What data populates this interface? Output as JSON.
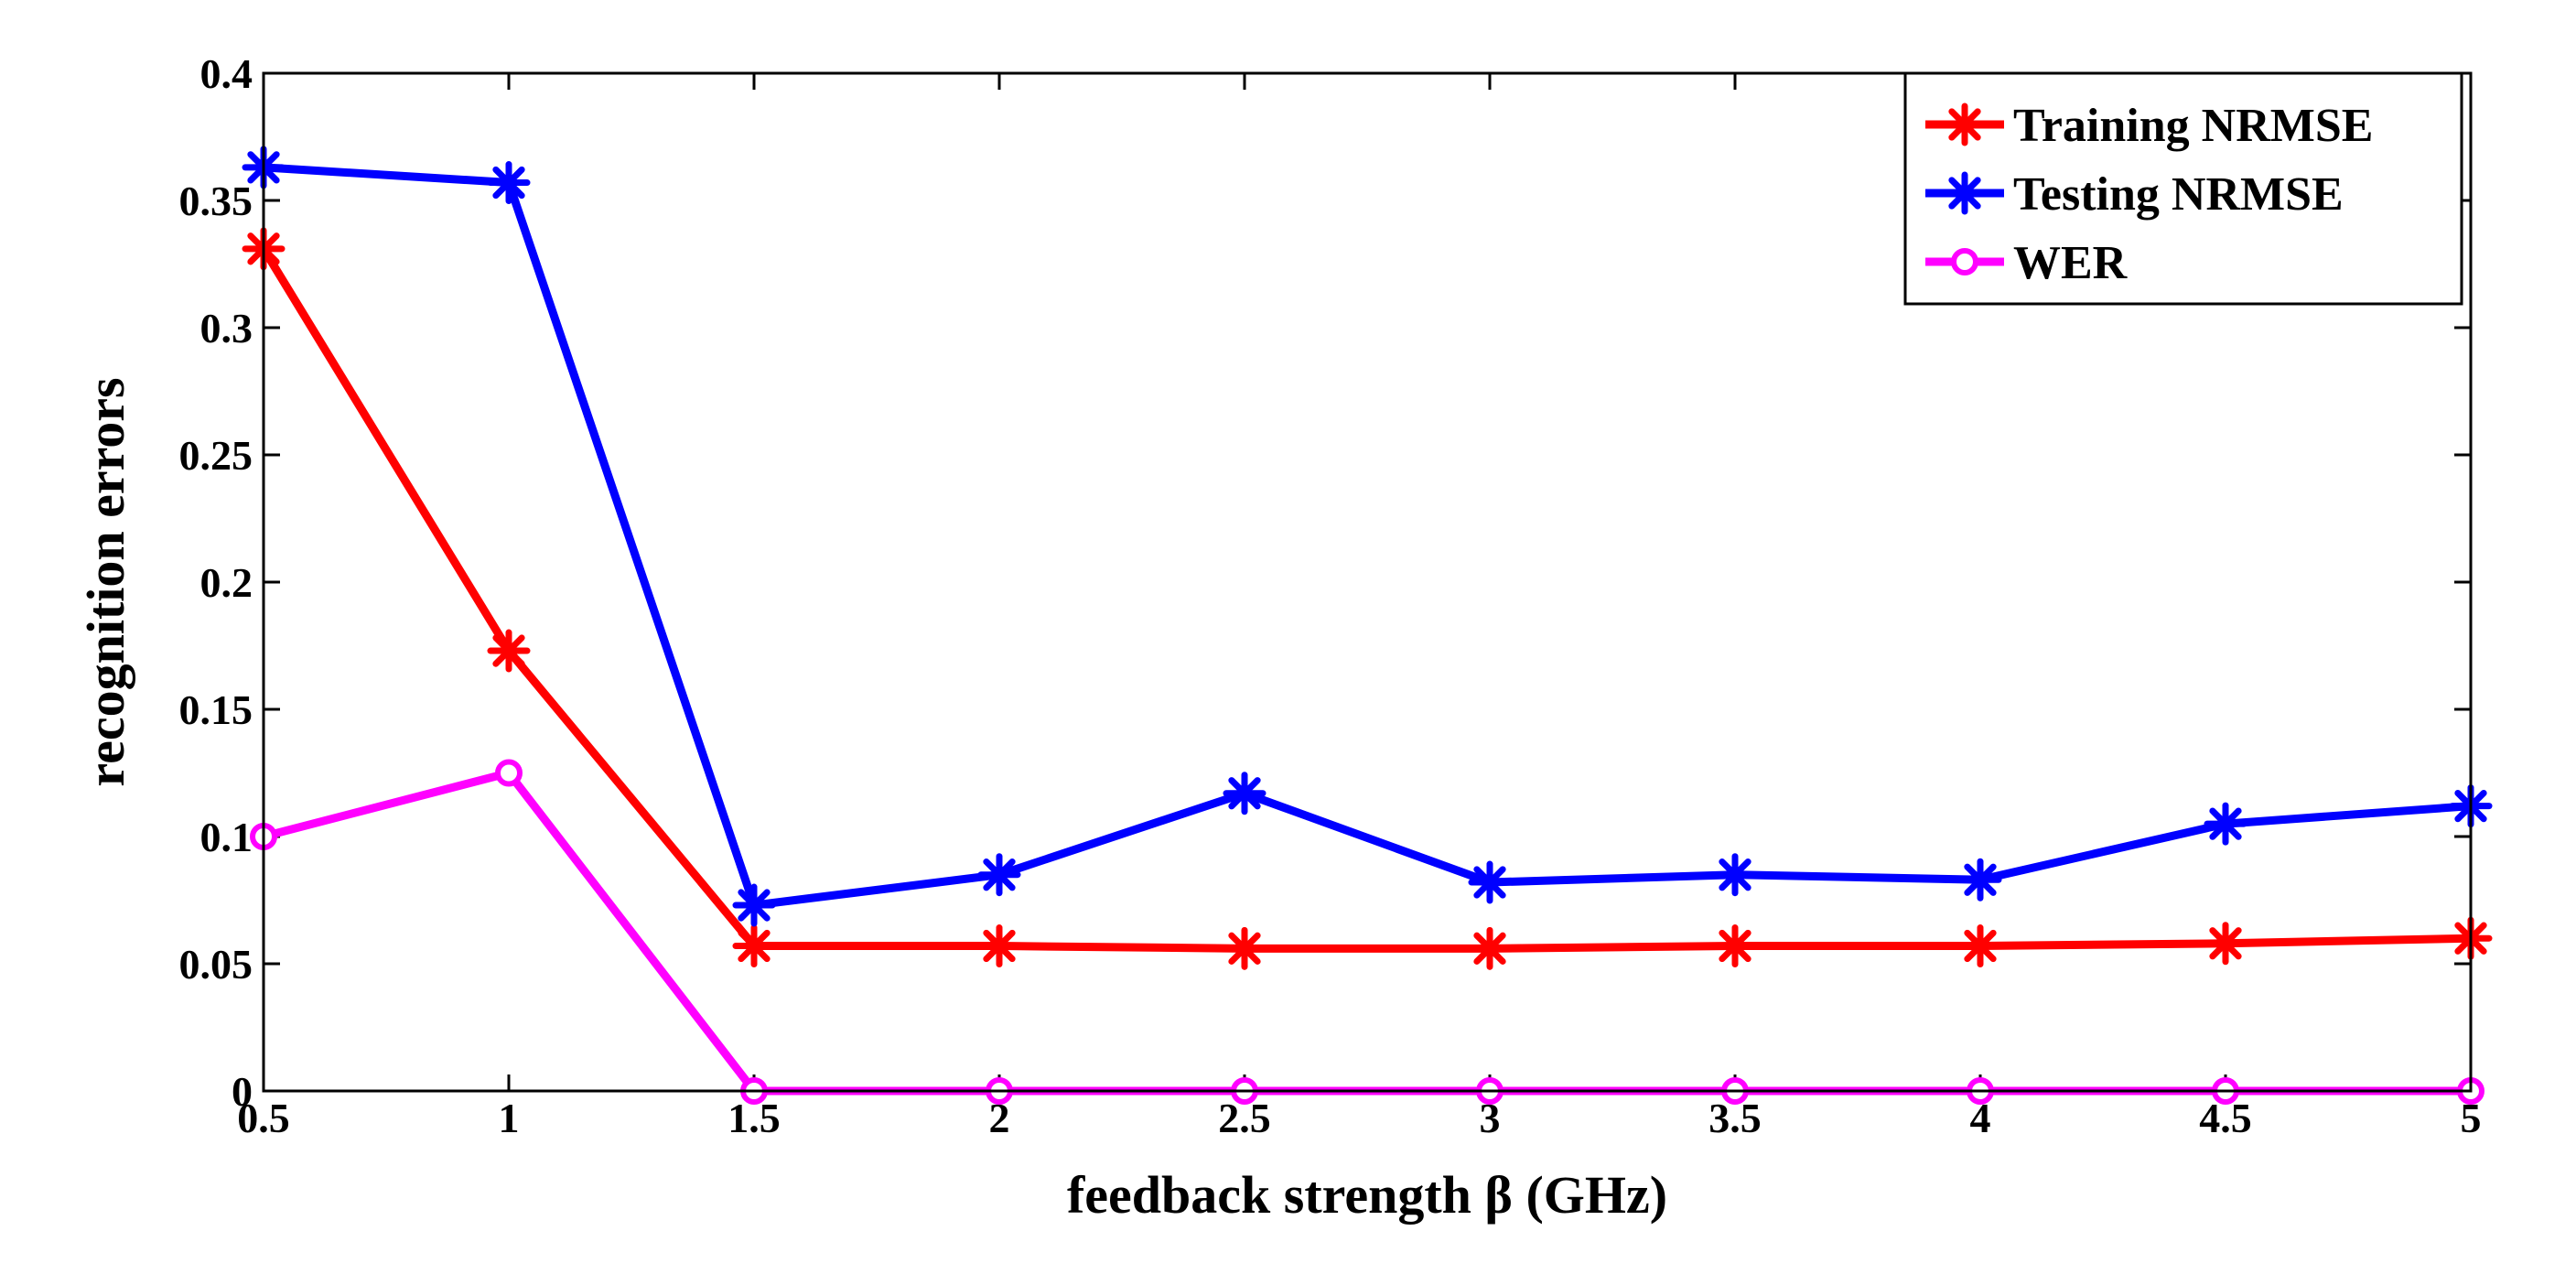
{
  "chart_data": {
    "type": "line",
    "title": "",
    "xlabel": "feedback strength β (GHz)",
    "ylabel": "recognition errors",
    "x": [
      0.5,
      1,
      1.5,
      2,
      2.5,
      3,
      3.5,
      4,
      4.5,
      5
    ],
    "xlim": [
      0.5,
      5
    ],
    "ylim": [
      0,
      0.4
    ],
    "xticks": [
      "0.5",
      "1",
      "1.5",
      "2",
      "2.5",
      "3",
      "3.5",
      "4",
      "4.5",
      "5"
    ],
    "yticks": [
      "0",
      "0.05",
      "0.1",
      "0.15",
      "0.2",
      "0.25",
      "0.3",
      "0.35",
      "0.4"
    ],
    "grid": false,
    "legend_position": "top-right",
    "series": [
      {
        "name": "Training NRMSE",
        "color": "#ff0000",
        "marker": "asterisk",
        "values": [
          0.331,
          0.173,
          0.057,
          0.057,
          0.056,
          0.056,
          0.057,
          0.057,
          0.058,
          0.06
        ]
      },
      {
        "name": "Testing NRMSE",
        "color": "#0000ff",
        "marker": "asterisk",
        "values": [
          0.363,
          0.357,
          0.073,
          0.085,
          0.117,
          0.082,
          0.085,
          0.083,
          0.105,
          0.112
        ]
      },
      {
        "name": "WER",
        "color": "#ff00ff",
        "marker": "circle",
        "values": [
          0.1,
          0.125,
          0.0,
          0.0,
          0.0,
          0.0,
          0.0,
          0.0,
          0.0,
          0.0
        ]
      }
    ]
  }
}
